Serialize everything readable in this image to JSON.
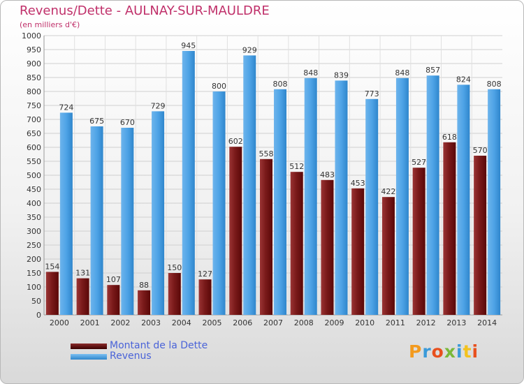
{
  "title": "Revenus/Dette - AULNAY-SUR-MAULDRE",
  "subtitle": "(en milliers d'€)",
  "logo": "Proxiti",
  "colors": {
    "debt": "#7a1a1a",
    "revenue": "#4ea3e6",
    "title": "#c0306a",
    "legend_text": "#4a63d8"
  },
  "legend": [
    {
      "label": "Montant de la Dette",
      "color": "#6e0f12"
    },
    {
      "label": "Revenus",
      "color": "#4ea3e6"
    }
  ],
  "chart_data": {
    "type": "bar",
    "categories": [
      "2000",
      "2001",
      "2002",
      "2003",
      "2004",
      "2005",
      "2006",
      "2007",
      "2008",
      "2009",
      "2010",
      "2011",
      "2012",
      "2013",
      "2014"
    ],
    "series": [
      {
        "name": "Montant de la Dette",
        "values": [
          154,
          131,
          107,
          88,
          150,
          127,
          602,
          558,
          512,
          483,
          453,
          422,
          527,
          618,
          570
        ]
      },
      {
        "name": "Revenus",
        "values": [
          724,
          675,
          670,
          729,
          945,
          800,
          929,
          808,
          848,
          839,
          773,
          848,
          857,
          824,
          808
        ]
      }
    ],
    "title": "Revenus/Dette - AULNAY-SUR-MAULDRE",
    "subtitle": "(en milliers d'€)",
    "ylim": [
      0,
      1000
    ],
    "ytick_step": 50,
    "grid": true,
    "legend_position": "bottom-left"
  }
}
